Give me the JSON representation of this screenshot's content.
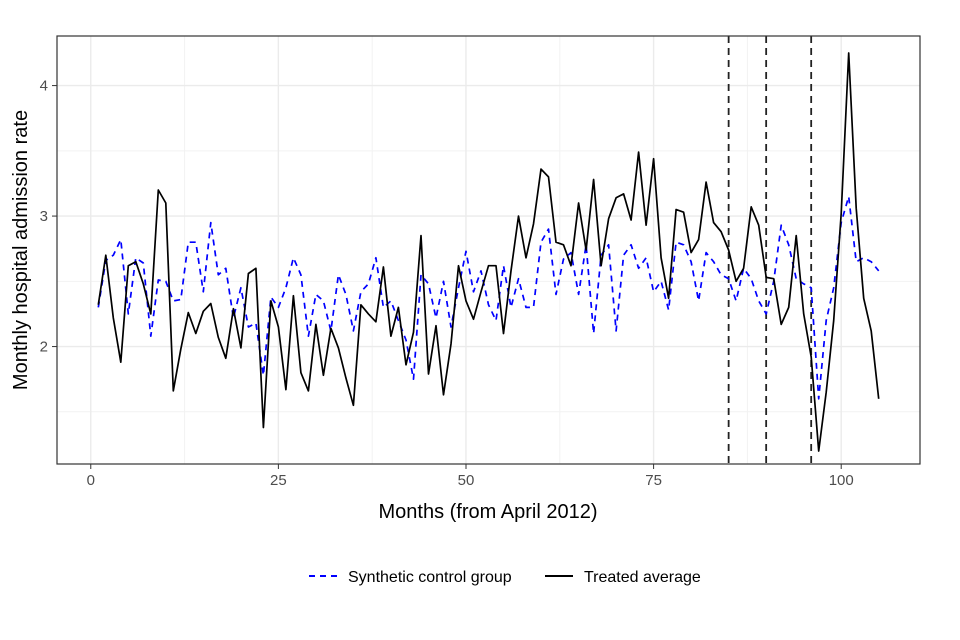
{
  "chart_data": {
    "type": "line",
    "xlabel": "Months (from April 2012)",
    "ylabel": "Monthly hospital admission rate",
    "xlim": [
      -4.5,
      110.5
    ],
    "ylim": [
      1.1,
      4.38
    ],
    "x_ticks": [
      0,
      25,
      50,
      75,
      100
    ],
    "x_minor_ticks": [
      12.5,
      37.5,
      62.5,
      87.5
    ],
    "y_ticks": [
      2,
      3,
      4
    ],
    "y_minor_ticks": [
      1.5,
      2.5,
      3.5
    ],
    "x_tick_labels": [
      "0",
      "25",
      "50",
      "75",
      "100"
    ],
    "y_tick_labels": [
      "2",
      "3",
      "4"
    ],
    "grid": true,
    "legend_position": "bottom",
    "vlines": [
      85,
      90,
      96
    ],
    "x": [
      1,
      2,
      3,
      4,
      5,
      6,
      7,
      8,
      9,
      10,
      11,
      12,
      13,
      14,
      15,
      16,
      17,
      18,
      19,
      20,
      21,
      22,
      23,
      24,
      25,
      26,
      27,
      28,
      29,
      30,
      31,
      32,
      33,
      34,
      35,
      36,
      37,
      38,
      39,
      40,
      41,
      42,
      43,
      44,
      45,
      46,
      47,
      48,
      49,
      50,
      51,
      52,
      53,
      54,
      55,
      56,
      57,
      58,
      59,
      60,
      61,
      62,
      63,
      64,
      65,
      66,
      67,
      68,
      69,
      70,
      71,
      72,
      73,
      74,
      75,
      76,
      77,
      78,
      79,
      80,
      81,
      82,
      83,
      84,
      85,
      86,
      87,
      88,
      89,
      90,
      91,
      92,
      93,
      94,
      95,
      96,
      97,
      98,
      99,
      100,
      101,
      102,
      103,
      104,
      105
    ],
    "series": [
      {
        "name": "Synthetic control group",
        "color": "#0000ff",
        "dash": "dashed",
        "values": [
          2.3,
          2.66,
          2.7,
          2.82,
          2.25,
          2.68,
          2.64,
          2.08,
          2.51,
          2.5,
          2.35,
          2.36,
          2.8,
          2.8,
          2.42,
          2.95,
          2.55,
          2.6,
          2.22,
          2.45,
          2.15,
          2.18,
          1.78,
          2.38,
          2.3,
          2.45,
          2.68,
          2.55,
          2.08,
          2.4,
          2.35,
          2.12,
          2.55,
          2.4,
          2.12,
          2.42,
          2.48,
          2.68,
          2.3,
          2.35,
          2.2,
          2.05,
          1.75,
          2.55,
          2.48,
          2.22,
          2.5,
          2.15,
          2.45,
          2.73,
          2.42,
          2.58,
          2.32,
          2.2,
          2.62,
          2.3,
          2.52,
          2.3,
          2.3,
          2.8,
          2.9,
          2.4,
          2.67,
          2.72,
          2.4,
          2.78,
          2.1,
          2.7,
          2.78,
          2.12,
          2.7,
          2.78,
          2.6,
          2.68,
          2.42,
          2.5,
          2.28,
          2.8,
          2.78,
          2.65,
          2.35,
          2.72,
          2.65,
          2.55,
          2.52,
          2.35,
          2.6,
          2.52,
          2.35,
          2.25,
          2.5,
          2.93,
          2.78,
          2.52,
          2.48,
          2.45,
          1.6,
          2.2,
          2.45,
          2.95,
          3.15,
          2.65,
          2.68,
          2.65,
          2.58
        ]
      },
      {
        "name": "Treated average",
        "color": "#000000",
        "dash": "solid",
        "values": [
          2.32,
          2.7,
          2.22,
          1.88,
          2.62,
          2.65,
          2.48,
          2.25,
          3.2,
          3.1,
          1.66,
          1.98,
          2.26,
          2.1,
          2.27,
          2.33,
          2.07,
          1.91,
          2.29,
          1.99,
          2.56,
          2.6,
          1.38,
          2.35,
          2.15,
          1.67,
          2.39,
          1.8,
          1.66,
          2.17,
          1.78,
          2.14,
          1.99,
          1.76,
          1.55,
          2.32,
          2.25,
          2.19,
          2.61,
          2.08,
          2.3,
          1.86,
          2.11,
          2.85,
          1.79,
          2.16,
          1.63,
          2.02,
          2.62,
          2.35,
          2.21,
          2.42,
          2.62,
          2.62,
          2.1,
          2.58,
          3.0,
          2.68,
          2.94,
          3.36,
          3.3,
          2.8,
          2.78,
          2.62,
          3.1,
          2.74,
          3.28,
          2.62,
          2.98,
          3.14,
          3.17,
          2.97,
          3.49,
          2.93,
          3.44,
          2.68,
          2.37,
          3.05,
          3.03,
          2.72,
          2.82,
          3.26,
          2.95,
          2.88,
          2.74,
          2.5,
          2.6,
          3.07,
          2.93,
          2.53,
          2.52,
          2.17,
          2.3,
          2.85,
          2.25,
          1.92,
          1.2,
          1.65,
          2.2,
          3.02,
          4.25,
          3.06,
          2.37,
          2.12,
          1.6
        ]
      }
    ]
  }
}
